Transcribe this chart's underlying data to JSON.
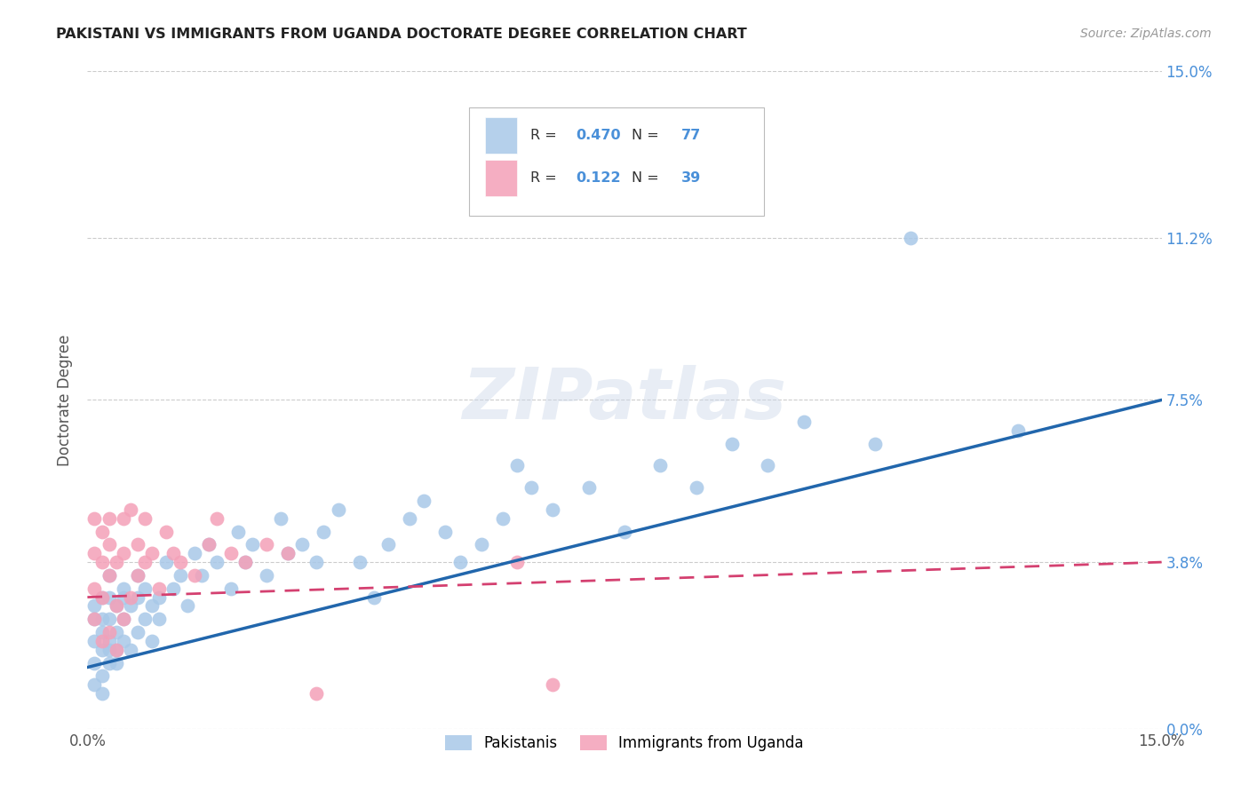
{
  "title": "PAKISTANI VS IMMIGRANTS FROM UGANDA DOCTORATE DEGREE CORRELATION CHART",
  "source": "Source: ZipAtlas.com",
  "ylabel": "Doctorate Degree",
  "xlim": [
    0.0,
    0.15
  ],
  "ylim": [
    0.0,
    0.15
  ],
  "ytick_values": [
    0.0,
    0.038,
    0.075,
    0.112,
    0.15
  ],
  "ytick_labels": [
    "0.0%",
    "3.8%",
    "7.5%",
    "11.2%",
    "15.0%"
  ],
  "grid_color": "#cccccc",
  "blue_scatter_color": "#a8c8e8",
  "pink_scatter_color": "#f4a0b8",
  "line_blue": "#2166ac",
  "line_pink": "#d44070",
  "R_blue": 0.47,
  "N_blue": 77,
  "R_pink": 0.122,
  "N_pink": 39,
  "legend_label_blue": "Pakistanis",
  "legend_label_pink": "Immigrants from Uganda",
  "blue_line_start_y": 0.014,
  "blue_line_end_y": 0.075,
  "pink_line_start_y": 0.03,
  "pink_line_end_y": 0.038,
  "pakistanis_x": [
    0.001,
    0.001,
    0.001,
    0.001,
    0.001,
    0.002,
    0.002,
    0.002,
    0.002,
    0.002,
    0.002,
    0.003,
    0.003,
    0.003,
    0.003,
    0.003,
    0.003,
    0.004,
    0.004,
    0.004,
    0.004,
    0.005,
    0.005,
    0.005,
    0.005,
    0.006,
    0.006,
    0.007,
    0.007,
    0.007,
    0.008,
    0.008,
    0.009,
    0.009,
    0.01,
    0.01,
    0.011,
    0.012,
    0.013,
    0.014,
    0.015,
    0.016,
    0.017,
    0.018,
    0.02,
    0.021,
    0.022,
    0.023,
    0.025,
    0.027,
    0.028,
    0.03,
    0.032,
    0.033,
    0.035,
    0.038,
    0.04,
    0.042,
    0.045,
    0.047,
    0.05,
    0.052,
    0.055,
    0.058,
    0.06,
    0.062,
    0.065,
    0.07,
    0.075,
    0.08,
    0.085,
    0.09,
    0.095,
    0.1,
    0.11,
    0.115,
    0.13
  ],
  "pakistanis_y": [
    0.01,
    0.02,
    0.025,
    0.028,
    0.015,
    0.018,
    0.022,
    0.03,
    0.012,
    0.025,
    0.008,
    0.02,
    0.03,
    0.018,
    0.025,
    0.015,
    0.035,
    0.022,
    0.028,
    0.015,
    0.018,
    0.03,
    0.025,
    0.02,
    0.032,
    0.018,
    0.028,
    0.022,
    0.03,
    0.035,
    0.025,
    0.032,
    0.028,
    0.02,
    0.03,
    0.025,
    0.038,
    0.032,
    0.035,
    0.028,
    0.04,
    0.035,
    0.042,
    0.038,
    0.032,
    0.045,
    0.038,
    0.042,
    0.035,
    0.048,
    0.04,
    0.042,
    0.038,
    0.045,
    0.05,
    0.038,
    0.03,
    0.042,
    0.048,
    0.052,
    0.045,
    0.038,
    0.042,
    0.048,
    0.06,
    0.055,
    0.05,
    0.055,
    0.045,
    0.06,
    0.055,
    0.065,
    0.06,
    0.07,
    0.065,
    0.112,
    0.068
  ],
  "uganda_x": [
    0.001,
    0.001,
    0.001,
    0.001,
    0.002,
    0.002,
    0.002,
    0.002,
    0.003,
    0.003,
    0.003,
    0.003,
    0.004,
    0.004,
    0.004,
    0.005,
    0.005,
    0.005,
    0.006,
    0.006,
    0.007,
    0.007,
    0.008,
    0.008,
    0.009,
    0.01,
    0.011,
    0.012,
    0.013,
    0.015,
    0.017,
    0.018,
    0.02,
    0.022,
    0.025,
    0.028,
    0.032,
    0.06,
    0.065
  ],
  "uganda_y": [
    0.025,
    0.032,
    0.04,
    0.048,
    0.02,
    0.03,
    0.038,
    0.045,
    0.022,
    0.035,
    0.042,
    0.048,
    0.018,
    0.028,
    0.038,
    0.025,
    0.04,
    0.048,
    0.03,
    0.05,
    0.035,
    0.042,
    0.038,
    0.048,
    0.04,
    0.032,
    0.045,
    0.04,
    0.038,
    0.035,
    0.042,
    0.048,
    0.04,
    0.038,
    0.042,
    0.04,
    0.008,
    0.038,
    0.01
  ]
}
